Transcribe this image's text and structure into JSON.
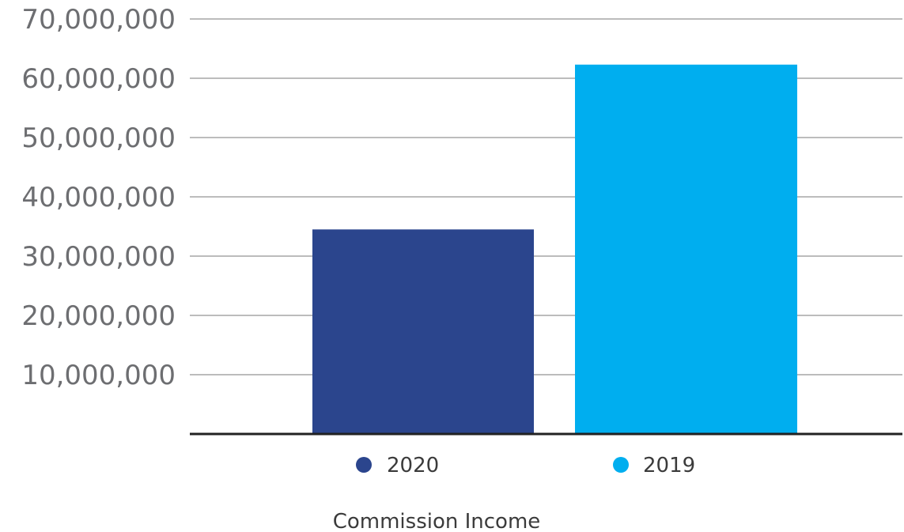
{
  "chart_data": {
    "type": "bar",
    "categories": [
      "2020",
      "2019"
    ],
    "values": [
      34500000,
      62300000
    ],
    "colors": [
      "#2b458d",
      "#00aeef"
    ],
    "xlabel": "Commission Income",
    "ylabel": "",
    "ylim": [
      0,
      70000000
    ],
    "yticks": [
      {
        "value": 10000000,
        "label": "10,000,000"
      },
      {
        "value": 20000000,
        "label": "20,000,000"
      },
      {
        "value": 30000000,
        "label": "30,000,000"
      },
      {
        "value": 40000000,
        "label": "40,000,000"
      },
      {
        "value": 50000000,
        "label": "50,000,000"
      },
      {
        "value": 60000000,
        "label": "60,000,000"
      },
      {
        "value": 70000000,
        "label": "70,000,000"
      }
    ],
    "legend": [
      {
        "label": "2020",
        "color": "#2b458d"
      },
      {
        "label": "2019",
        "color": "#00aeef"
      }
    ],
    "grid": true,
    "legend_position": "bottom"
  }
}
